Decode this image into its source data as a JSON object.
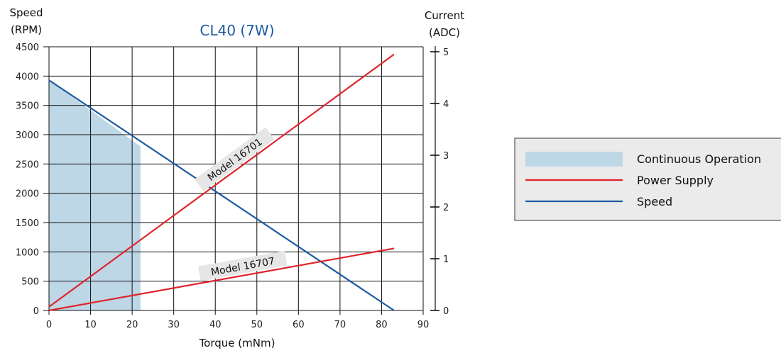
{
  "chart_data": {
    "type": "line",
    "title": "CL40 (7W)",
    "xlabel": "Torque (mNm)",
    "ylabel_left": [
      "Speed",
      "(RPM)"
    ],
    "ylabel_right": [
      "Current",
      "(ADC)"
    ],
    "x_ticks": [
      0,
      10,
      20,
      30,
      40,
      50,
      60,
      70,
      80,
      90
    ],
    "y_left_ticks": [
      0,
      500,
      1000,
      1500,
      2000,
      2500,
      3000,
      3500,
      4000,
      4500
    ],
    "y_right_ticks": [
      0,
      1,
      2,
      3,
      4,
      5
    ],
    "xlim": [
      0,
      90
    ],
    "ylim_left": [
      0,
      4500
    ],
    "ylim_right": [
      0,
      5.2
    ],
    "grid": true,
    "legend_position": "right",
    "continuous_operation": {
      "x": [
        0,
        22
      ],
      "speed_top_at_x0": 3930,
      "speed_top_at_x1": 2800
    },
    "series": [
      {
        "name": "Speed",
        "axis": "left",
        "x": [
          0,
          83
        ],
        "y": [
          3930,
          0
        ]
      },
      {
        "name": "Model 16701",
        "axis": "right",
        "x": [
          0,
          83
        ],
        "y": [
          0.07,
          4.95
        ]
      },
      {
        "name": "Model 16707",
        "axis": "right",
        "x": [
          0,
          83
        ],
        "y": [
          0.0,
          1.2
        ]
      }
    ],
    "annotations": [
      {
        "text": "Model 16701",
        "series": "Model 16701",
        "x": 46,
        "angle_deg": -39
      },
      {
        "text": "Model 16707",
        "series": "Model 16707",
        "x": 47,
        "angle_deg": -11
      }
    ],
    "legend": [
      {
        "label": "Continuous Operation",
        "kind": "area"
      },
      {
        "label": "Power Supply",
        "kind": "line"
      },
      {
        "label": "Speed",
        "kind": "line"
      }
    ],
    "colors": {
      "continuous_operation": "#bdd7e7",
      "power_supply": "#e0242c",
      "speed": "#1c5aa0",
      "title": "#1c5aa0",
      "grid": "#111111",
      "legend_bg": "#ebebeb"
    }
  }
}
